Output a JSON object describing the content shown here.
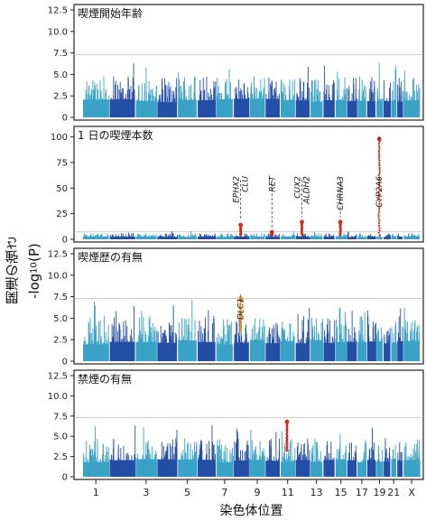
{
  "y_axis_title": "関連の強さ",
  "y_axis_sub": "-log",
  "y_axis_subscript": "10",
  "y_axis_paren": "(P)",
  "x_axis_title": "染色体位置",
  "x_ticks": [
    "1",
    "3",
    "5",
    "7",
    "9",
    "11",
    "13",
    "15",
    "17",
    "19",
    "21",
    "X"
  ],
  "colors": {
    "light": "#3aa3c6",
    "dark": "#244fa6",
    "hit": "#d42a1f",
    "orange": "#f08a1c",
    "threshold": "#bbbbbb"
  },
  "chart_data": [
    {
      "type": "scatter",
      "title": "喫煙開始年齢",
      "yticks": [
        "0",
        "2.5",
        "5.0",
        "7.5",
        "10.0",
        "12.5"
      ],
      "ylim": [
        0,
        12.5
      ],
      "threshold": 7.3,
      "baseline": 3.2,
      "annotations": []
    },
    {
      "type": "scatter",
      "title": "1 日の喫煙本数",
      "yticks": [
        "0",
        "25",
        "50",
        "75",
        "100"
      ],
      "ylim": [
        0,
        105
      ],
      "threshold": 7.3,
      "baseline": 4.0,
      "annotations": [
        {
          "genes": [
            "EPHX2",
            "CLU"
          ],
          "chromosome": 8,
          "peak": 14
        },
        {
          "genes": [
            "RET"
          ],
          "chromosome": 10,
          "peak": 7
        },
        {
          "genes": [
            "CUX2",
            "ALDH2"
          ],
          "chromosome": 12,
          "peak": 17
        },
        {
          "genes": [
            "CHRNA3"
          ],
          "chromosome": 15,
          "peak": 17
        },
        {
          "genes": [
            "CYP2A6"
          ],
          "chromosome": 19,
          "peak": 98
        }
      ]
    },
    {
      "type": "scatter",
      "title": "喫煙歴の有無",
      "yticks": [
        "0",
        "2.5",
        "5.0",
        "7.5",
        "10.0",
        "12.5"
      ],
      "ylim": [
        0,
        12.5
      ],
      "threshold": 7.3,
      "baseline": 3.5,
      "annotations": [
        {
          "genes": [
            "DLC1"
          ],
          "chromosome": 8,
          "peak": 7.3,
          "color": "orange"
        }
      ]
    },
    {
      "type": "scatter",
      "title": "禁煙の有無",
      "yticks": [
        "0",
        "2.5",
        "5.0",
        "7.5",
        "10.0",
        "12.5"
      ],
      "ylim": [
        0,
        12.5
      ],
      "threshold": 7.3,
      "baseline": 3.2,
      "annotations": [
        {
          "genes": [],
          "chromosome": 11,
          "peak": 6.8
        }
      ]
    }
  ]
}
